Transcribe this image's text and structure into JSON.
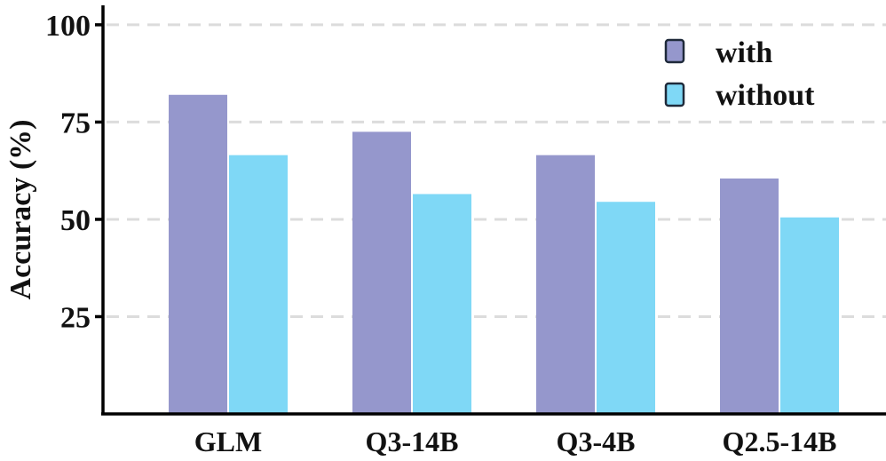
{
  "chart_data": {
    "type": "bar",
    "title": "",
    "xlabel": "",
    "ylabel": "Accuracy (%)",
    "ylim": [
      0,
      105
    ],
    "yticks": [
      25,
      50,
      75,
      100
    ],
    "grid": true,
    "legend_position": "top-right",
    "categories": [
      "GLM",
      "Q3-14B",
      "Q3-4B",
      "Q2.5-14B"
    ],
    "series": [
      {
        "name": "with",
        "color": "#9597cc",
        "values": [
          82,
          72.5,
          66.5,
          60.5
        ]
      },
      {
        "name": "without",
        "color": "#7fd8f6",
        "values": [
          66.5,
          56.5,
          54.5,
          50.5
        ]
      }
    ]
  }
}
